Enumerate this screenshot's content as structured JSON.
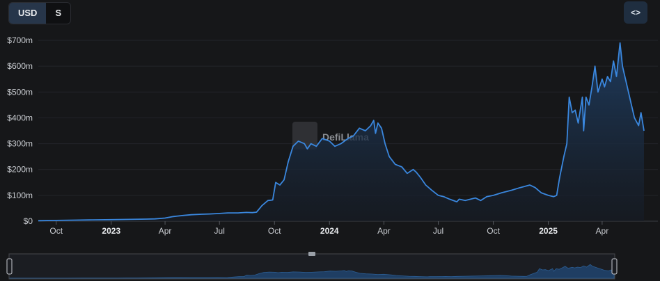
{
  "currency_toggle": {
    "options": [
      "USD",
      "S"
    ],
    "active": "USD"
  },
  "embed_button": {
    "label": "<>"
  },
  "watermark": {
    "text": "DefiLlama"
  },
  "colors": {
    "line": "#3a87de",
    "background": "#161719",
    "grid": "#23252a",
    "toggle_active": "#27364a"
  },
  "chart_data": {
    "type": "area",
    "title": "",
    "xlabel": "",
    "ylabel": "",
    "ylim": [
      0,
      700
    ],
    "y_unit": "m",
    "y_ticks": [
      0,
      100,
      200,
      300,
      400,
      500,
      600,
      700
    ],
    "y_tick_labels": [
      "$0",
      "$100m",
      "$200m",
      "$300m",
      "$400m",
      "$500m",
      "$600m",
      "$700m"
    ],
    "grid": true,
    "x_tick_labels": [
      "Oct",
      "2023",
      "Apr",
      "Jul",
      "Oct",
      "2024",
      "Apr",
      "Jul",
      "Oct",
      "2025",
      "Apr"
    ],
    "x_tick_dates": [
      "2022-10-01",
      "2023-01-01",
      "2023-04-01",
      "2023-07-01",
      "2023-10-01",
      "2024-01-01",
      "2024-04-01",
      "2024-07-01",
      "2024-10-01",
      "2025-01-01",
      "2025-04-01"
    ],
    "x_range": [
      "2022-09-01",
      "2025-06-10"
    ],
    "series": [
      {
        "x": [
          "2022-09-01",
          "2022-10-01",
          "2022-11-01",
          "2022-12-01",
          "2023-01-01",
          "2023-02-01",
          "2023-03-01",
          "2023-03-15",
          "2023-04-01",
          "2023-04-15",
          "2023-05-01",
          "2023-05-15",
          "2023-06-01",
          "2023-06-15",
          "2023-07-01",
          "2023-07-15",
          "2023-08-01",
          "2023-08-15",
          "2023-08-25",
          "2023-09-01",
          "2023-09-10",
          "2023-09-20",
          "2023-09-28",
          "2023-10-03",
          "2023-10-10",
          "2023-10-17",
          "2023-10-24",
          "2023-11-01",
          "2023-11-10",
          "2023-11-20",
          "2023-11-25",
          "2023-12-01",
          "2023-12-10",
          "2023-12-20",
          "2024-01-01",
          "2024-01-10",
          "2024-01-20",
          "2024-02-01",
          "2024-02-10",
          "2024-02-20",
          "2024-03-01",
          "2024-03-10",
          "2024-03-15",
          "2024-03-18",
          "2024-03-22",
          "2024-03-28",
          "2024-04-03",
          "2024-04-10",
          "2024-04-20",
          "2024-05-01",
          "2024-05-10",
          "2024-05-20",
          "2024-05-25",
          "2024-06-01",
          "2024-06-10",
          "2024-06-20",
          "2024-07-01",
          "2024-07-10",
          "2024-07-20",
          "2024-08-01",
          "2024-08-05",
          "2024-08-15",
          "2024-09-01",
          "2024-09-10",
          "2024-09-20",
          "2024-10-01",
          "2024-10-15",
          "2024-11-01",
          "2024-11-15",
          "2024-12-01",
          "2024-12-10",
          "2024-12-20",
          "2025-01-01",
          "2025-01-10",
          "2025-01-15",
          "2025-01-20",
          "2025-01-27",
          "2025-02-01",
          "2025-02-05",
          "2025-02-10",
          "2025-02-15",
          "2025-02-20",
          "2025-02-27",
          "2025-03-01",
          "2025-03-05",
          "2025-03-10",
          "2025-03-15",
          "2025-03-20",
          "2025-03-25",
          "2025-04-01",
          "2025-04-05",
          "2025-04-10",
          "2025-04-15",
          "2025-04-20",
          "2025-04-25",
          "2025-05-01",
          "2025-05-05",
          "2025-05-10",
          "2025-05-15",
          "2025-05-20",
          "2025-05-25",
          "2025-06-01",
          "2025-06-05",
          "2025-06-10"
        ],
        "values": [
          2,
          3,
          4,
          5,
          6,
          7,
          8,
          9,
          12,
          18,
          22,
          25,
          27,
          28,
          30,
          32,
          32,
          34,
          33,
          35,
          60,
          80,
          82,
          150,
          140,
          160,
          230,
          290,
          310,
          300,
          280,
          300,
          290,
          320,
          310,
          290,
          300,
          320,
          330,
          360,
          350,
          370,
          390,
          340,
          380,
          360,
          300,
          250,
          220,
          210,
          185,
          200,
          190,
          170,
          140,
          120,
          100,
          95,
          85,
          75,
          85,
          80,
          90,
          80,
          95,
          100,
          110,
          120,
          130,
          140,
          130,
          110,
          100,
          95,
          100,
          170,
          250,
          300,
          480,
          420,
          430,
          380,
          480,
          350,
          480,
          450,
          520,
          600,
          500,
          550,
          520,
          560,
          540,
          620,
          560,
          690,
          600,
          550,
          500,
          450,
          400,
          370,
          420,
          350
        ]
      }
    ]
  }
}
